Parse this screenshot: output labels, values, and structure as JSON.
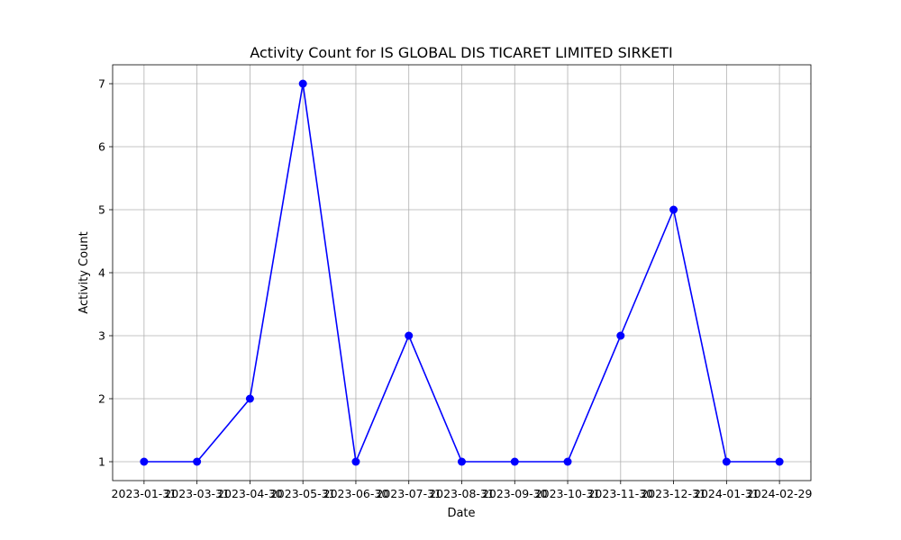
{
  "chart_data": {
    "type": "line",
    "title": "Activity Count for IS GLOBAL DIS TICARET LIMITED SIRKETI",
    "xlabel": "Date",
    "ylabel": "Activity Count",
    "x": [
      "2023-01-31",
      "2023-03-31",
      "2023-04-30",
      "2023-05-31",
      "2023-06-30",
      "2023-07-31",
      "2023-08-31",
      "2023-09-30",
      "2023-10-31",
      "2023-11-30",
      "2023-12-31",
      "2024-01-31",
      "2024-02-29"
    ],
    "series": [
      {
        "values": [
          1,
          1,
          2,
          7,
          1,
          3,
          1,
          1,
          1,
          3,
          5,
          1,
          1
        ],
        "color": "#0000ff",
        "marker": "circle"
      }
    ],
    "y_ticks": [
      1,
      2,
      3,
      4,
      5,
      6,
      7
    ],
    "ylim": [
      0.7,
      7.3
    ],
    "grid": true,
    "legend": "none"
  }
}
